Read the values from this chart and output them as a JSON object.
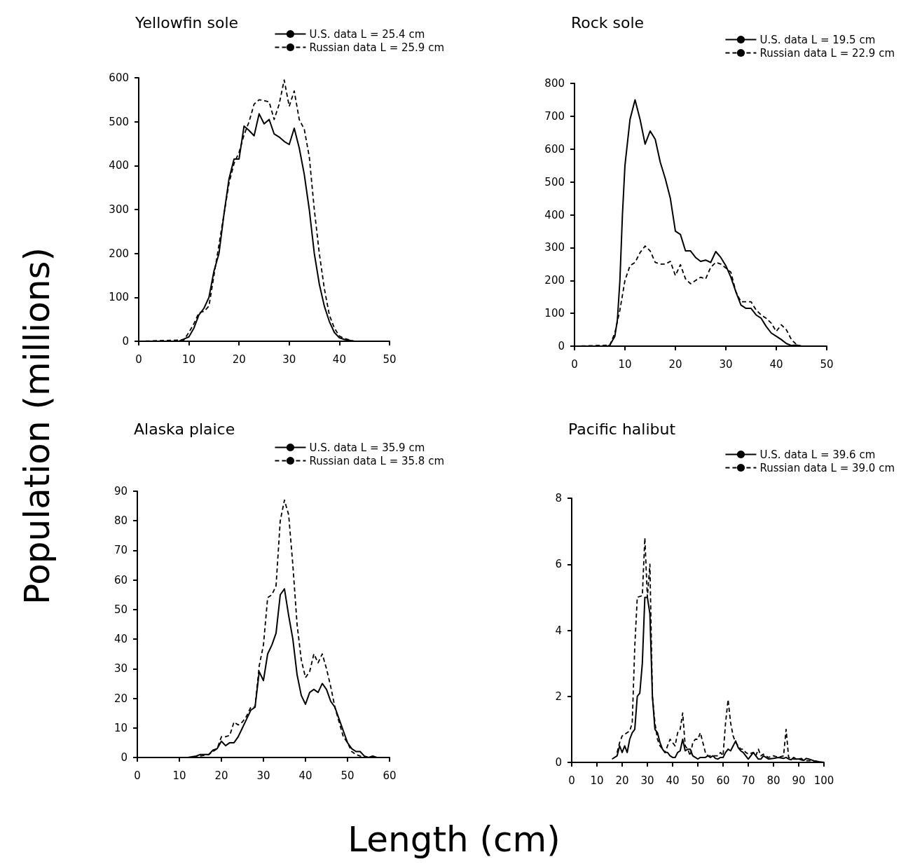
{
  "chart_data": [
    {
      "type": "line",
      "title": "Yellowfin sole",
      "ylabel": "Population (millions)",
      "xlim": [
        0,
        50
      ],
      "xticks": [
        0,
        10,
        20,
        30,
        40,
        50
      ],
      "ylim": [
        0,
        600
      ],
      "yticks": [
        0,
        100,
        200,
        300,
        400,
        500,
        600
      ],
      "grid": false,
      "legend": "top right",
      "marker": "none",
      "series": [
        {
          "name": "U.S. data L = 25.4 cm",
          "color": "#000000",
          "line_style": "solid",
          "x": [
            0,
            8,
            9,
            10,
            11,
            12,
            13,
            14,
            15,
            16,
            17,
            18,
            19,
            20,
            21,
            22,
            23,
            24,
            25,
            26,
            27,
            28,
            29,
            30,
            31,
            32,
            33,
            34,
            35,
            36,
            37,
            38,
            39,
            40,
            41,
            42,
            43,
            50
          ],
          "values": [
            0,
            0,
            5,
            10,
            30,
            60,
            75,
            100,
            160,
            200,
            290,
            370,
            415,
            415,
            490,
            480,
            468,
            518,
            495,
            505,
            472,
            465,
            455,
            448,
            485,
            440,
            380,
            300,
            200,
            130,
            80,
            45,
            20,
            8,
            4,
            2,
            0,
            0
          ]
        },
        {
          "name": "Russian data L = 25.9 cm",
          "color": "#000000",
          "line_style": "dashed",
          "x": [
            0,
            9,
            10,
            11,
            12,
            13,
            14,
            15,
            16,
            17,
            18,
            19,
            20,
            21,
            22,
            23,
            24,
            25,
            26,
            27,
            28,
            29,
            30,
            31,
            32,
            33,
            34,
            35,
            36,
            37,
            38,
            39,
            40,
            41,
            42,
            43,
            50
          ],
          "values": [
            0,
            3,
            20,
            40,
            65,
            68,
            80,
            150,
            220,
            290,
            360,
            405,
            430,
            470,
            500,
            540,
            550,
            548,
            545,
            505,
            540,
            595,
            535,
            570,
            505,
            483,
            420,
            300,
            200,
            120,
            60,
            30,
            12,
            6,
            3,
            0,
            0
          ]
        }
      ]
    },
    {
      "type": "line",
      "title": "Rock sole",
      "xlim": [
        0,
        50
      ],
      "xticks": [
        0,
        10,
        20,
        30,
        40,
        50
      ],
      "ylim": [
        0,
        800
      ],
      "yticks": [
        0,
        100,
        200,
        300,
        400,
        500,
        600,
        700,
        800
      ],
      "grid": false,
      "legend": "top right",
      "marker": "none",
      "series": [
        {
          "name": "U.S. data L = 19.5 cm",
          "color": "#000000",
          "line_style": "solid",
          "x": [
            0,
            6.5,
            7,
            8,
            8.5,
            9,
            9.5,
            10,
            11,
            12,
            13,
            14,
            15,
            16,
            17,
            18,
            19,
            20,
            21,
            22,
            23,
            24,
            25,
            26,
            27,
            28,
            29,
            30,
            31,
            32,
            33,
            34,
            35,
            36,
            37,
            38,
            39,
            40,
            41,
            42,
            43,
            44,
            45,
            50
          ],
          "values": [
            0,
            0,
            3,
            30,
            80,
            200,
            400,
            550,
            690,
            750,
            690,
            615,
            655,
            630,
            560,
            510,
            450,
            350,
            340,
            290,
            290,
            270,
            258,
            262,
            255,
            288,
            270,
            245,
            210,
            165,
            125,
            115,
            115,
            95,
            85,
            60,
            40,
            30,
            20,
            8,
            2,
            3,
            0,
            0
          ]
        },
        {
          "name": "Russian data L = 22.9 cm",
          "color": "#000000",
          "line_style": "dashed",
          "x": [
            0,
            7,
            8,
            9,
            10,
            11,
            12,
            13,
            14,
            15,
            16,
            17,
            18,
            19,
            20,
            21,
            22,
            23,
            24,
            25,
            26,
            27,
            28,
            29,
            30,
            31,
            32,
            33,
            34,
            35,
            36,
            37,
            38,
            39,
            40,
            41,
            42,
            43,
            44,
            45,
            50
          ],
          "values": [
            0,
            3,
            40,
            110,
            200,
            245,
            255,
            285,
            305,
            290,
            255,
            250,
            250,
            258,
            215,
            248,
            205,
            190,
            200,
            210,
            205,
            240,
            255,
            250,
            238,
            225,
            165,
            135,
            135,
            135,
            110,
            95,
            85,
            70,
            45,
            65,
            50,
            20,
            5,
            0,
            0
          ]
        }
      ]
    },
    {
      "type": "line",
      "title": "Alaska plaice",
      "xlabel": "Length (cm)",
      "xlim": [
        0,
        60
      ],
      "xticks": [
        0,
        10,
        20,
        30,
        40,
        50,
        60
      ],
      "ylim": [
        0,
        90
      ],
      "yticks": [
        0,
        10,
        20,
        30,
        40,
        50,
        60,
        70,
        80,
        90
      ],
      "grid": false,
      "legend": "top right",
      "marker": "none",
      "series": [
        {
          "name": "U.S. data L = 35.9 cm",
          "color": "#000000",
          "line_style": "solid",
          "x": [
            0,
            12,
            14,
            15,
            17,
            18,
            19,
            20,
            21,
            22,
            23,
            24,
            25,
            26,
            27,
            28,
            29,
            30,
            31,
            32,
            33,
            34,
            35,
            36,
            37,
            38,
            39,
            40,
            41,
            42,
            43,
            44,
            45,
            46,
            47,
            48,
            49,
            50,
            51,
            52,
            53,
            54,
            55,
            56,
            57,
            60
          ],
          "values": [
            0,
            0,
            0.5,
            1,
            1,
            2.5,
            3,
            5.5,
            4,
            5,
            5,
            7,
            10,
            13,
            16,
            17,
            29,
            26,
            35,
            38,
            42,
            55,
            57,
            48,
            40,
            28,
            21,
            18,
            22,
            23,
            22,
            25,
            23,
            19,
            17,
            13,
            9,
            5,
            3,
            2,
            2,
            0.5,
            0,
            0.5,
            0,
            0
          ]
        },
        {
          "name": "Russian data L = 35.8 cm",
          "color": "#000000",
          "line_style": "dashed",
          "x": [
            0,
            13,
            15,
            17,
            18,
            19,
            20,
            21,
            22,
            23,
            24,
            25,
            26,
            27,
            28,
            29,
            30,
            31,
            32,
            33,
            34,
            35,
            36,
            37,
            38,
            39,
            40,
            41,
            42,
            43,
            44,
            45,
            46,
            47,
            48,
            49,
            50,
            51,
            52,
            53,
            55,
            60
          ],
          "values": [
            0,
            0,
            0.5,
            1,
            2,
            3,
            7,
            7,
            7.5,
            12,
            11,
            12,
            14,
            17,
            17,
            31,
            38,
            54,
            55,
            58,
            80,
            87,
            82,
            65,
            45,
            33,
            27,
            29,
            35,
            32,
            35,
            30,
            24,
            17,
            12,
            7,
            5,
            2,
            1,
            0.5,
            0,
            0
          ]
        }
      ]
    },
    {
      "type": "line",
      "title": "Pacific halibut",
      "xlim": [
        0,
        100
      ],
      "xticks": [
        0,
        10,
        20,
        30,
        40,
        50,
        60,
        70,
        80,
        90,
        100
      ],
      "ylim": [
        0,
        8
      ],
      "yticks": [
        0,
        2,
        4,
        6,
        8
      ],
      "grid": false,
      "legend": "top right",
      "marker": "none",
      "series": [
        {
          "name": "U.S. data L = 39.6 cm",
          "color": "#000000",
          "line_style": "solid",
          "x": [
            16,
            18,
            19,
            20,
            21,
            22,
            23,
            24,
            25,
            26,
            27,
            28,
            29,
            30,
            31,
            32,
            33,
            34,
            35,
            36,
            37,
            38,
            39,
            40,
            41,
            42,
            43,
            44,
            45,
            46,
            47,
            48,
            49,
            50,
            51,
            52,
            53,
            54,
            55,
            56,
            57,
            58,
            59,
            60,
            61,
            62,
            63,
            64,
            65,
            66,
            67,
            68,
            69,
            70,
            71,
            72,
            73,
            74,
            75,
            76,
            77,
            78,
            80,
            82,
            84,
            85,
            86,
            87,
            88,
            89,
            90,
            91,
            92,
            93,
            94,
            96,
            98,
            100
          ],
          "values": [
            0.1,
            0.2,
            0.5,
            0.3,
            0.5,
            0.3,
            0.7,
            0.9,
            1.0,
            2.0,
            2.1,
            3.0,
            5.0,
            5.0,
            4.5,
            2.0,
            1.0,
            0.9,
            0.6,
            0.4,
            0.3,
            0.3,
            0.2,
            0.15,
            0.15,
            0.3,
            0.35,
            0.7,
            0.35,
            0.4,
            0.4,
            0.2,
            0.15,
            0.1,
            0.15,
            0.15,
            0.15,
            0.2,
            0.15,
            0.2,
            0.12,
            0.1,
            0.15,
            0.15,
            0.3,
            0.4,
            0.35,
            0.5,
            0.65,
            0.45,
            0.35,
            0.3,
            0.2,
            0.1,
            0.2,
            0.3,
            0.2,
            0.1,
            0.1,
            0.2,
            0.15,
            0.1,
            0.12,
            0.15,
            0.12,
            0.15,
            0.1,
            0.08,
            0.15,
            0.1,
            0.1,
            0.12,
            0.06,
            0.12,
            0.1,
            0.05,
            0.02,
            0
          ]
        },
        {
          "name": "Russian data L = 39.0 cm",
          "color": "#000000",
          "line_style": "dashed",
          "x": [
            18,
            19,
            20,
            22,
            23,
            24,
            25,
            26,
            28,
            29,
            30,
            31,
            32,
            33,
            34,
            35,
            36,
            37,
            38,
            39,
            40,
            41,
            42,
            43,
            44,
            45,
            46,
            47,
            48,
            49,
            50,
            51,
            52,
            53,
            54,
            55,
            56,
            57,
            58,
            59,
            60,
            61,
            62,
            63,
            64,
            65,
            66,
            67,
            68,
            69,
            70,
            72,
            73,
            74,
            75,
            76,
            77,
            78,
            80,
            82,
            84,
            85,
            86,
            88,
            90,
            92,
            95,
            98
          ],
          "values": [
            0.3,
            0.6,
            0.8,
            0.9,
            0.95,
            1.2,
            3.5,
            5.0,
            5.05,
            6.8,
            5.0,
            6.0,
            2.0,
            1.2,
            0.7,
            0.5,
            0.4,
            0.3,
            0.5,
            0.7,
            0.6,
            0.5,
            0.9,
            1.0,
            1.5,
            0.5,
            0.4,
            0.2,
            0.6,
            0.7,
            0.7,
            0.9,
            0.6,
            0.3,
            0.2,
            0.2,
            0.2,
            0.2,
            0.2,
            0.3,
            0.2,
            1.2,
            1.9,
            1.2,
            0.8,
            0.6,
            0.5,
            0.4,
            0.4,
            0.3,
            0.25,
            0.3,
            0.2,
            0.4,
            0.2,
            0.25,
            0.2,
            0.15,
            0.2,
            0.15,
            0.2,
            1.0,
            0.15,
            0.1,
            0.1,
            0.05,
            0.05,
            0.02
          ]
        }
      ]
    }
  ]
}
